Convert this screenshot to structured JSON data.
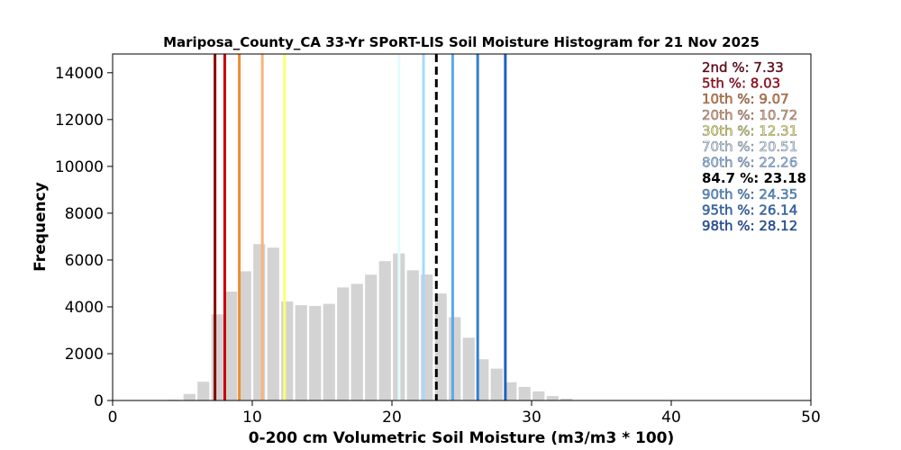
{
  "chart_data": {
    "type": "bar",
    "title": "Mariposa_County_CA 33-Yr SPoRT-LIS Soil Moisture Histogram for 21 Nov 2025",
    "xlabel": "0-200 cm Volumetric Soil Moisture (m3/m3 * 100)",
    "ylabel": "Frequency",
    "xlim": [
      0,
      50
    ],
    "ylim": [
      0,
      14800
    ],
    "xticks": [
      "0",
      "10",
      "20",
      "30",
      "40",
      "50"
    ],
    "yticks": [
      "0",
      "2000",
      "4000",
      "6000",
      "8000",
      "10000",
      "12000",
      "14000"
    ],
    "bin_width": 0.85,
    "bar_color": "#d3d3d3",
    "bins": [
      {
        "x": 4.4,
        "value": 30
      },
      {
        "x": 5.5,
        "value": 280
      },
      {
        "x": 6.5,
        "value": 800
      },
      {
        "x": 7.5,
        "value": 3680
      },
      {
        "x": 8.5,
        "value": 4650
      },
      {
        "x": 9.5,
        "value": 5520
      },
      {
        "x": 10.5,
        "value": 6680
      },
      {
        "x": 11.5,
        "value": 6530
      },
      {
        "x": 12.5,
        "value": 4230
      },
      {
        "x": 13.5,
        "value": 4070
      },
      {
        "x": 14.5,
        "value": 4040
      },
      {
        "x": 15.5,
        "value": 4130
      },
      {
        "x": 16.5,
        "value": 4830
      },
      {
        "x": 17.5,
        "value": 4980
      },
      {
        "x": 18.5,
        "value": 5370
      },
      {
        "x": 19.5,
        "value": 5950
      },
      {
        "x": 20.5,
        "value": 6280
      },
      {
        "x": 21.5,
        "value": 5560
      },
      {
        "x": 22.5,
        "value": 5380
      },
      {
        "x": 23.5,
        "value": 4570
      },
      {
        "x": 24.5,
        "value": 3560
      },
      {
        "x": 25.5,
        "value": 2680
      },
      {
        "x": 26.5,
        "value": 1760
      },
      {
        "x": 27.5,
        "value": 1360
      },
      {
        "x": 28.5,
        "value": 780
      },
      {
        "x": 29.5,
        "value": 580
      },
      {
        "x": 30.5,
        "value": 390
      },
      {
        "x": 31.5,
        "value": 190
      },
      {
        "x": 32.5,
        "value": 80
      },
      {
        "x": 33.5,
        "value": 20
      }
    ],
    "percentile_lines": [
      {
        "label": "2nd %",
        "value": "7.33",
        "x": 7.33,
        "color": "#8b0000",
        "dashed": false
      },
      {
        "label": "5th %",
        "value": "8.03",
        "x": 8.03,
        "color": "#cc0000",
        "dashed": false
      },
      {
        "label": "10th %",
        "value": "9.07",
        "x": 9.07,
        "color": "#f08c30",
        "dashed": false
      },
      {
        "label": "20th %",
        "value": "10.72",
        "x": 10.72,
        "color": "#f8b478",
        "dashed": false
      },
      {
        "label": "30th %",
        "value": "12.31",
        "x": 12.31,
        "color": "#ffff70",
        "dashed": false
      },
      {
        "label": "70th %",
        "value": "20.51",
        "x": 20.51,
        "color": "#e0fcff",
        "dashed": false
      },
      {
        "label": "80th %",
        "value": "22.26",
        "x": 22.26,
        "color": "#a6d8ff",
        "dashed": false
      },
      {
        "label": "84.7 %",
        "value": "23.18",
        "x": 23.18,
        "color": "#000000",
        "dashed": true
      },
      {
        "label": "90th %",
        "value": "24.35",
        "x": 24.35,
        "color": "#5aaae8",
        "dashed": false
      },
      {
        "label": "95th %",
        "value": "26.14",
        "x": 26.14,
        "color": "#2f80d0",
        "dashed": false
      },
      {
        "label": "98th %",
        "value": "28.12",
        "x": 28.12,
        "color": "#1f60c0",
        "dashed": false
      }
    ],
    "legend_position": "top-right",
    "grid": false
  }
}
